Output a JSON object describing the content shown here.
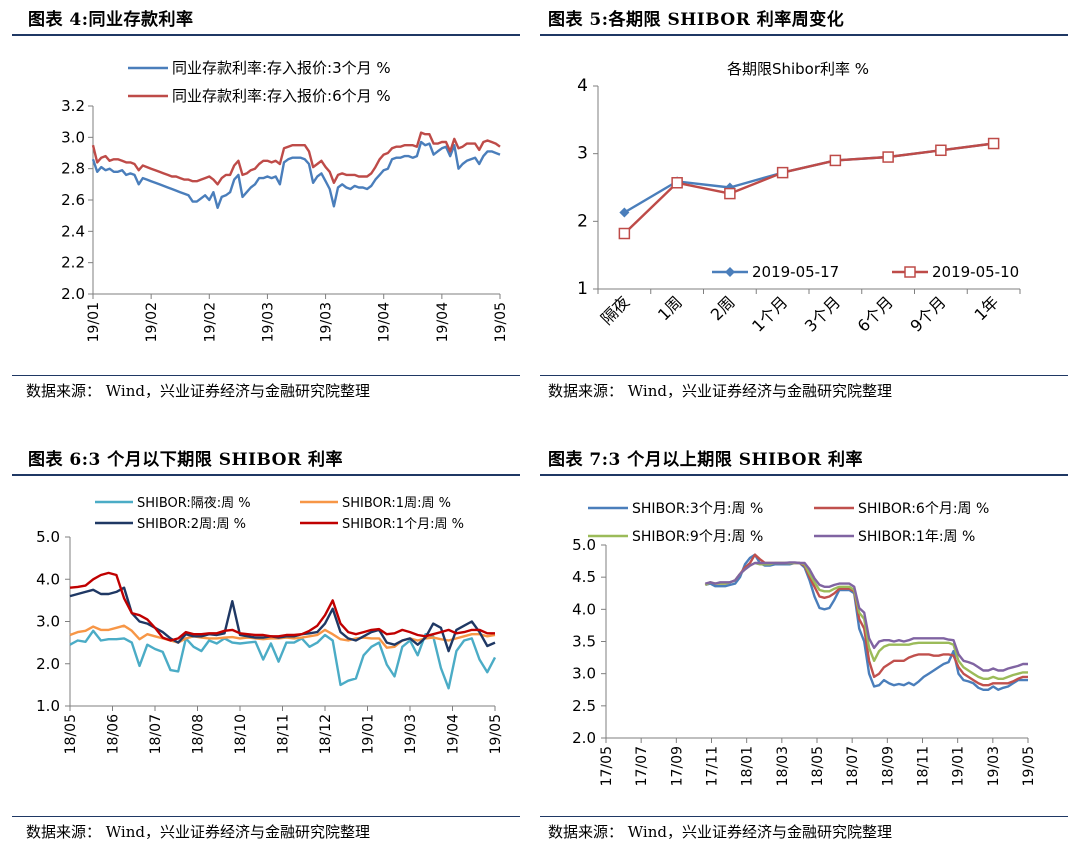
{
  "panels": [
    {
      "title": "图表 4:同业存款利率",
      "source": "数据来源： Wind，兴业证券经济与金融研究院整理"
    },
    {
      "title": "图表 5:各期限 SHIBOR 利率周变化",
      "source": "数据来源： Wind，兴业证券经济与金融研究院整理"
    },
    {
      "title": "图表 6:3 个月以下期限 SHIBOR 利率",
      "source": "数据来源： Wind，兴业证券经济与金融研究院整理"
    },
    {
      "title": "图表 7:3 个月以上期限 SHIBOR 利率",
      "source": "数据来源： Wind，兴业证券经济与金融研究院整理"
    }
  ],
  "chart_data": [
    {
      "type": "line",
      "title": "",
      "ylim": [
        2.0,
        3.2
      ],
      "yticks": [
        "2.0",
        "2.2",
        "2.4",
        "2.6",
        "2.8",
        "3.0",
        "3.2"
      ],
      "xticks": [
        "19/01",
        "19/02",
        "19/02",
        "19/03",
        "19/03",
        "19/04",
        "19/04",
        "19/05"
      ],
      "legend_position": "top",
      "series": [
        {
          "name": "同业存款利率:存入报价:3个月 %",
          "color": "#4a7ebb",
          "values": [
            2.86,
            2.78,
            2.81,
            2.79,
            2.8,
            2.78,
            2.78,
            2.79,
            2.76,
            2.77,
            2.76,
            2.7,
            2.74,
            2.73,
            2.72,
            2.71,
            2.7,
            2.69,
            2.68,
            2.67,
            2.66,
            2.65,
            2.64,
            2.63,
            2.59,
            2.59,
            2.61,
            2.63,
            2.6,
            2.65,
            2.55,
            2.62,
            2.63,
            2.65,
            2.73,
            2.76,
            2.62,
            2.65,
            2.68,
            2.7,
            2.74,
            2.74,
            2.75,
            2.74,
            2.75,
            2.7,
            2.84,
            2.86,
            2.87,
            2.87,
            2.87,
            2.86,
            2.83,
            2.71,
            2.75,
            2.77,
            2.72,
            2.67,
            2.56,
            2.68,
            2.7,
            2.68,
            2.67,
            2.69,
            2.68,
            2.68,
            2.67,
            2.69,
            2.73,
            2.76,
            2.79,
            2.8,
            2.86,
            2.87,
            2.87,
            2.88,
            2.88,
            2.87,
            2.88,
            2.97,
            2.95,
            2.96,
            2.89,
            2.91,
            2.93,
            2.94,
            2.88,
            2.95,
            2.8,
            2.83,
            2.85,
            2.86,
            2.87,
            2.83,
            2.88,
            2.91,
            2.91,
            2.9,
            2.89
          ]
        },
        {
          "name": "同业存款利率:存入报价:6个月 %",
          "color": "#be4b48",
          "values": [
            2.95,
            2.84,
            2.87,
            2.88,
            2.85,
            2.86,
            2.86,
            2.85,
            2.84,
            2.84,
            2.83,
            2.79,
            2.82,
            2.81,
            2.8,
            2.79,
            2.78,
            2.77,
            2.76,
            2.75,
            2.75,
            2.74,
            2.73,
            2.73,
            2.72,
            2.72,
            2.73,
            2.74,
            2.75,
            2.73,
            2.7,
            2.74,
            2.76,
            2.76,
            2.82,
            2.85,
            2.76,
            2.77,
            2.79,
            2.8,
            2.83,
            2.85,
            2.85,
            2.84,
            2.85,
            2.83,
            2.93,
            2.94,
            2.95,
            2.95,
            2.95,
            2.95,
            2.91,
            2.81,
            2.83,
            2.85,
            2.81,
            2.78,
            2.71,
            2.76,
            2.77,
            2.76,
            2.76,
            2.76,
            2.75,
            2.75,
            2.75,
            2.77,
            2.81,
            2.86,
            2.89,
            2.9,
            2.93,
            2.94,
            2.94,
            2.95,
            2.95,
            2.95,
            2.94,
            3.03,
            3.02,
            3.02,
            2.96,
            2.96,
            2.97,
            2.97,
            2.91,
            2.99,
            2.93,
            2.94,
            2.96,
            2.96,
            2.96,
            2.92,
            2.97,
            2.98,
            2.97,
            2.96,
            2.94
          ]
        }
      ]
    },
    {
      "type": "line",
      "title": "各期限Shibor利率 %",
      "ylim": [
        1,
        4
      ],
      "yticks": [
        "1",
        "2",
        "3",
        "4"
      ],
      "categories": [
        "隔夜",
        "1周",
        "2周",
        "1个月",
        "3个月",
        "6个月",
        "9个月",
        "1年"
      ],
      "legend_position": "bottom-right",
      "series": [
        {
          "name": "2019-05-17",
          "color": "#4a7ebb",
          "marker": "diamond",
          "values": [
            2.13,
            2.59,
            2.5,
            2.72,
            2.9,
            2.95,
            3.05,
            3.15
          ]
        },
        {
          "name": "2019-05-10",
          "color": "#be4b48",
          "marker": "square",
          "values": [
            1.82,
            2.57,
            2.41,
            2.72,
            2.9,
            2.95,
            3.05,
            3.15
          ]
        }
      ]
    },
    {
      "type": "line",
      "title": "",
      "ylim": [
        1.0,
        5.0
      ],
      "yticks": [
        "1.0",
        "2.0",
        "3.0",
        "4.0",
        "5.0"
      ],
      "xticks": [
        "18/05",
        "18/06",
        "18/07",
        "18/08",
        "18/10",
        "18/11",
        "18/12",
        "19/01",
        "19/03",
        "19/04",
        "19/05"
      ],
      "legend_position": "top",
      "series": [
        {
          "name": "SHIBOR:隔夜:周 %",
          "color": "#4bacc6",
          "values": [
            2.45,
            2.55,
            2.52,
            2.78,
            2.55,
            2.58,
            2.58,
            2.6,
            2.5,
            1.95,
            2.45,
            2.35,
            2.28,
            1.85,
            1.82,
            2.6,
            2.4,
            2.3,
            2.55,
            2.48,
            2.6,
            2.5,
            2.48,
            2.5,
            2.52,
            2.1,
            2.48,
            2.05,
            2.5,
            2.5,
            2.6,
            2.4,
            2.5,
            2.68,
            2.55,
            1.5,
            1.6,
            1.65,
            2.2,
            2.4,
            2.5,
            1.98,
            1.7,
            2.4,
            2.55,
            2.2,
            2.7,
            2.65,
            1.9,
            1.42,
            2.3,
            2.55,
            2.6,
            2.1,
            1.8,
            2.15
          ]
        },
        {
          "name": "SHIBOR:1周:周 %",
          "color": "#f79646",
          "values": [
            2.68,
            2.75,
            2.78,
            2.88,
            2.8,
            2.8,
            2.85,
            2.9,
            2.78,
            2.58,
            2.7,
            2.65,
            2.6,
            2.55,
            2.5,
            2.6,
            2.65,
            2.62,
            2.6,
            2.6,
            2.62,
            2.63,
            2.6,
            2.62,
            2.6,
            2.58,
            2.6,
            2.6,
            2.62,
            2.6,
            2.62,
            2.65,
            2.68,
            2.8,
            2.7,
            2.58,
            2.55,
            2.6,
            2.62,
            2.6,
            2.6,
            2.38,
            2.4,
            2.55,
            2.6,
            2.55,
            2.6,
            2.62,
            2.58,
            2.55,
            2.6,
            2.65,
            2.7,
            2.7,
            2.65,
            2.68
          ]
        },
        {
          "name": "SHIBOR:2周:周 %",
          "color": "#1f3864",
          "values": [
            3.6,
            3.65,
            3.7,
            3.75,
            3.65,
            3.65,
            3.7,
            3.8,
            3.2,
            3.0,
            2.95,
            2.85,
            2.75,
            2.6,
            2.5,
            2.7,
            2.65,
            2.65,
            2.7,
            2.68,
            2.72,
            3.48,
            2.68,
            2.65,
            2.62,
            2.62,
            2.65,
            2.62,
            2.65,
            2.65,
            2.7,
            2.72,
            2.75,
            2.95,
            3.3,
            2.75,
            2.6,
            2.55,
            2.65,
            2.75,
            2.8,
            2.5,
            2.45,
            2.55,
            2.6,
            2.45,
            2.62,
            2.95,
            2.85,
            2.3,
            2.8,
            2.9,
            3.0,
            2.75,
            2.42,
            2.5
          ]
        },
        {
          "name": "SHIBOR:1个月:周 %",
          "color": "#c00000",
          "values": [
            3.8,
            3.82,
            3.85,
            4.0,
            4.1,
            4.15,
            4.1,
            3.55,
            3.2,
            3.15,
            3.05,
            2.85,
            2.62,
            2.55,
            2.6,
            2.75,
            2.7,
            2.7,
            2.72,
            2.72,
            2.78,
            2.8,
            2.72,
            2.7,
            2.68,
            2.68,
            2.65,
            2.65,
            2.68,
            2.68,
            2.7,
            2.78,
            2.9,
            3.15,
            3.5,
            2.95,
            2.75,
            2.7,
            2.75,
            2.8,
            2.82,
            2.7,
            2.72,
            2.8,
            2.75,
            2.68,
            2.65,
            2.7,
            2.75,
            2.8,
            2.72,
            2.75,
            2.8,
            2.8,
            2.72,
            2.72
          ]
        }
      ]
    },
    {
      "type": "line",
      "title": "",
      "ylim": [
        2.0,
        5.0
      ],
      "yticks": [
        "2.0",
        "2.5",
        "3.0",
        "3.5",
        "4.0",
        "4.5",
        "5.0"
      ],
      "xticks": [
        "17/05",
        "17/07",
        "17/09",
        "17/11",
        "18/01",
        "18/03",
        "18/05",
        "18/07",
        "18/09",
        "18/11",
        "19/01",
        "19/03",
        "19/05"
      ],
      "legend_position": "top",
      "series": [
        {
          "name": "SHIBOR:3个月:周 %",
          "color": "#4a7ebb",
          "values": [
            null,
            null,
            null,
            null,
            null,
            null,
            null,
            null,
            null,
            null,
            null,
            null,
            null,
            null,
            null,
            null,
            null,
            null,
            null,
            null,
            4.38,
            4.4,
            4.36,
            4.36,
            4.36,
            4.38,
            4.4,
            4.5,
            4.7,
            4.8,
            4.85,
            4.72,
            4.68,
            4.68,
            4.7,
            4.7,
            4.7,
            4.7,
            4.72,
            4.72,
            4.65,
            4.45,
            4.2,
            4.02,
            4.0,
            4.02,
            4.15,
            4.3,
            4.3,
            4.3,
            4.25,
            3.7,
            3.5,
            3.0,
            2.8,
            2.82,
            2.9,
            2.85,
            2.82,
            2.84,
            2.82,
            2.86,
            2.82,
            2.88,
            2.95,
            3.0,
            3.05,
            3.1,
            3.15,
            3.18,
            3.35,
            3.0,
            2.9,
            2.88,
            2.85,
            2.78,
            2.75,
            2.75,
            2.8,
            2.75,
            2.78,
            2.8,
            2.85,
            2.9,
            2.9,
            2.9
          ]
        },
        {
          "name": "SHIBOR:6个月:周 %",
          "color": "#c0504d",
          "values": [
            null,
            null,
            null,
            null,
            null,
            null,
            null,
            null,
            null,
            null,
            null,
            null,
            null,
            null,
            null,
            null,
            null,
            null,
            null,
            null,
            4.38,
            4.42,
            4.4,
            4.4,
            4.4,
            4.42,
            4.45,
            4.55,
            4.65,
            4.72,
            4.85,
            4.78,
            4.72,
            4.72,
            4.72,
            4.72,
            4.72,
            4.72,
            4.72,
            4.72,
            4.68,
            4.5,
            4.35,
            4.2,
            4.18,
            4.2,
            4.25,
            4.32,
            4.32,
            4.32,
            4.28,
            3.85,
            3.7,
            3.2,
            2.95,
            3.0,
            3.1,
            3.15,
            3.2,
            3.2,
            3.2,
            3.25,
            3.28,
            3.3,
            3.3,
            3.3,
            3.28,
            3.28,
            3.3,
            3.3,
            3.28,
            3.1,
            3.0,
            2.95,
            2.9,
            2.85,
            2.82,
            2.82,
            2.85,
            2.85,
            2.85,
            2.85,
            2.88,
            2.92,
            2.95,
            2.95
          ]
        },
        {
          "name": "SHIBOR:9个月:周 %",
          "color": "#9bbb59",
          "values": [
            null,
            null,
            null,
            null,
            null,
            null,
            null,
            null,
            null,
            null,
            null,
            null,
            null,
            null,
            null,
            null,
            null,
            null,
            null,
            null,
            4.38,
            4.42,
            4.4,
            4.4,
            4.4,
            4.42,
            4.45,
            4.55,
            4.62,
            4.68,
            4.72,
            4.7,
            4.7,
            4.7,
            4.72,
            4.72,
            4.72,
            4.72,
            4.72,
            4.72,
            4.7,
            4.55,
            4.42,
            4.3,
            4.28,
            4.28,
            4.32,
            4.35,
            4.35,
            4.35,
            4.3,
            3.95,
            3.85,
            3.4,
            3.2,
            3.35,
            3.42,
            3.45,
            3.45,
            3.45,
            3.45,
            3.45,
            3.47,
            3.48,
            3.48,
            3.48,
            3.48,
            3.48,
            3.48,
            3.48,
            3.45,
            3.2,
            3.1,
            3.05,
            3.0,
            2.95,
            2.92,
            2.92,
            2.95,
            2.92,
            2.92,
            2.95,
            2.98,
            3.0,
            3.02,
            3.02
          ]
        },
        {
          "name": "SHIBOR:1年:周 %",
          "color": "#8064a2",
          "values": [
            null,
            null,
            null,
            null,
            null,
            null,
            null,
            null,
            null,
            null,
            null,
            null,
            null,
            null,
            null,
            null,
            null,
            null,
            null,
            null,
            4.4,
            4.42,
            4.4,
            4.42,
            4.42,
            4.42,
            4.45,
            4.55,
            4.62,
            4.68,
            4.72,
            4.72,
            4.72,
            4.72,
            4.72,
            4.72,
            4.72,
            4.73,
            4.73,
            4.72,
            4.72,
            4.62,
            4.48,
            4.38,
            4.35,
            4.35,
            4.38,
            4.4,
            4.4,
            4.4,
            4.35,
            4.02,
            3.95,
            3.55,
            3.4,
            3.5,
            3.52,
            3.52,
            3.5,
            3.52,
            3.5,
            3.52,
            3.55,
            3.55,
            3.55,
            3.55,
            3.55,
            3.55,
            3.55,
            3.53,
            3.52,
            3.3,
            3.2,
            3.18,
            3.15,
            3.1,
            3.05,
            3.05,
            3.08,
            3.05,
            3.05,
            3.08,
            3.1,
            3.12,
            3.15,
            3.15
          ]
        }
      ]
    }
  ]
}
